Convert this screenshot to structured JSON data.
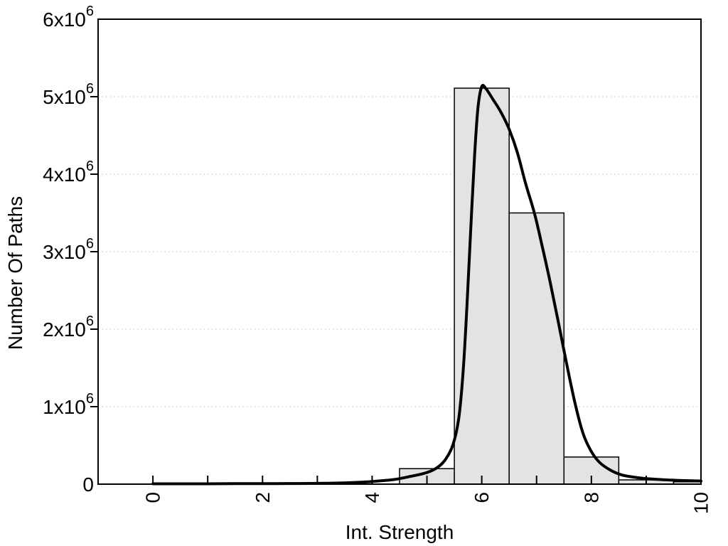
{
  "figure": {
    "xlabel": "Int. Strength",
    "ylabel": "Number Of Paths"
  },
  "chart_data": {
    "type": "bar",
    "subtype": "histogram-with-density-curve",
    "title": "",
    "xlabel": "Int. Strength",
    "ylabel": "Number Of Paths",
    "xlim": [
      -1,
      10
    ],
    "ylim": [
      0,
      6000000
    ],
    "grid": "horizontal-dotted",
    "legend": "none",
    "x_major_ticks": [
      0,
      2,
      4,
      6,
      8,
      10
    ],
    "x_minor_ticks": [
      1,
      3,
      5,
      7,
      9
    ],
    "x_tick_labels": [
      "0",
      "2",
      "4",
      "6",
      "8",
      "10"
    ],
    "y_ticks": [
      {
        "value": 0,
        "mantissa": "0",
        "exponent": ""
      },
      {
        "value": 1000000,
        "mantissa": "1x10",
        "exponent": "6"
      },
      {
        "value": 2000000,
        "mantissa": "2x10",
        "exponent": "6"
      },
      {
        "value": 3000000,
        "mantissa": "3x10",
        "exponent": "6"
      },
      {
        "value": 4000000,
        "mantissa": "4x10",
        "exponent": "6"
      },
      {
        "value": 5000000,
        "mantissa": "5x10",
        "exponent": "6"
      },
      {
        "value": 6000000,
        "mantissa": "6x10",
        "exponent": "6"
      }
    ],
    "bars": [
      {
        "x0": 4.5,
        "x1": 5.5,
        "value": 200000
      },
      {
        "x0": 5.5,
        "x1": 6.5,
        "value": 5110000
      },
      {
        "x0": 6.5,
        "x1": 7.5,
        "value": 3500000
      },
      {
        "x0": 7.5,
        "x1": 8.5,
        "value": 350000
      },
      {
        "x0": 8.5,
        "x1": 9.5,
        "value": 55000
      },
      {
        "x0": 9.5,
        "x1": 10.0,
        "value": 30000
      }
    ],
    "curve": [
      [
        0,
        5000
      ],
      [
        0.5,
        5000
      ],
      [
        1,
        5000
      ],
      [
        1.5,
        6000
      ],
      [
        2,
        7000
      ],
      [
        2.5,
        8000
      ],
      [
        3,
        10000
      ],
      [
        3.4,
        15000
      ],
      [
        3.8,
        25000
      ],
      [
        4.1,
        40000
      ],
      [
        4.4,
        60000
      ],
      [
        4.7,
        100000
      ],
      [
        5.0,
        150000
      ],
      [
        5.2,
        220000
      ],
      [
        5.35,
        330000
      ],
      [
        5.48,
        520000
      ],
      [
        5.58,
        850000
      ],
      [
        5.66,
        1450000
      ],
      [
        5.73,
        2300000
      ],
      [
        5.8,
        3300000
      ],
      [
        5.87,
        4250000
      ],
      [
        5.93,
        4850000
      ],
      [
        6.0,
        5130000
      ],
      [
        6.08,
        5100000
      ],
      [
        6.2,
        4970000
      ],
      [
        6.35,
        4800000
      ],
      [
        6.5,
        4580000
      ],
      [
        6.65,
        4280000
      ],
      [
        6.8,
        3880000
      ],
      [
        6.96,
        3500000
      ],
      [
        7.1,
        3080000
      ],
      [
        7.25,
        2600000
      ],
      [
        7.4,
        2080000
      ],
      [
        7.55,
        1550000
      ],
      [
        7.7,
        1050000
      ],
      [
        7.85,
        650000
      ],
      [
        8.0,
        420000
      ],
      [
        8.15,
        280000
      ],
      [
        8.35,
        180000
      ],
      [
        8.55,
        120000
      ],
      [
        8.8,
        88000
      ],
      [
        9.0,
        72000
      ],
      [
        9.3,
        58000
      ],
      [
        9.6,
        48000
      ],
      [
        10,
        40000
      ]
    ],
    "colors": {
      "background": "#ffffff",
      "bar_fill": "#e3e3e3",
      "bar_border": "#000000",
      "curve": "#000000",
      "grid": "#bdbdbd",
      "axis": "#000000",
      "text": "#000000"
    }
  }
}
